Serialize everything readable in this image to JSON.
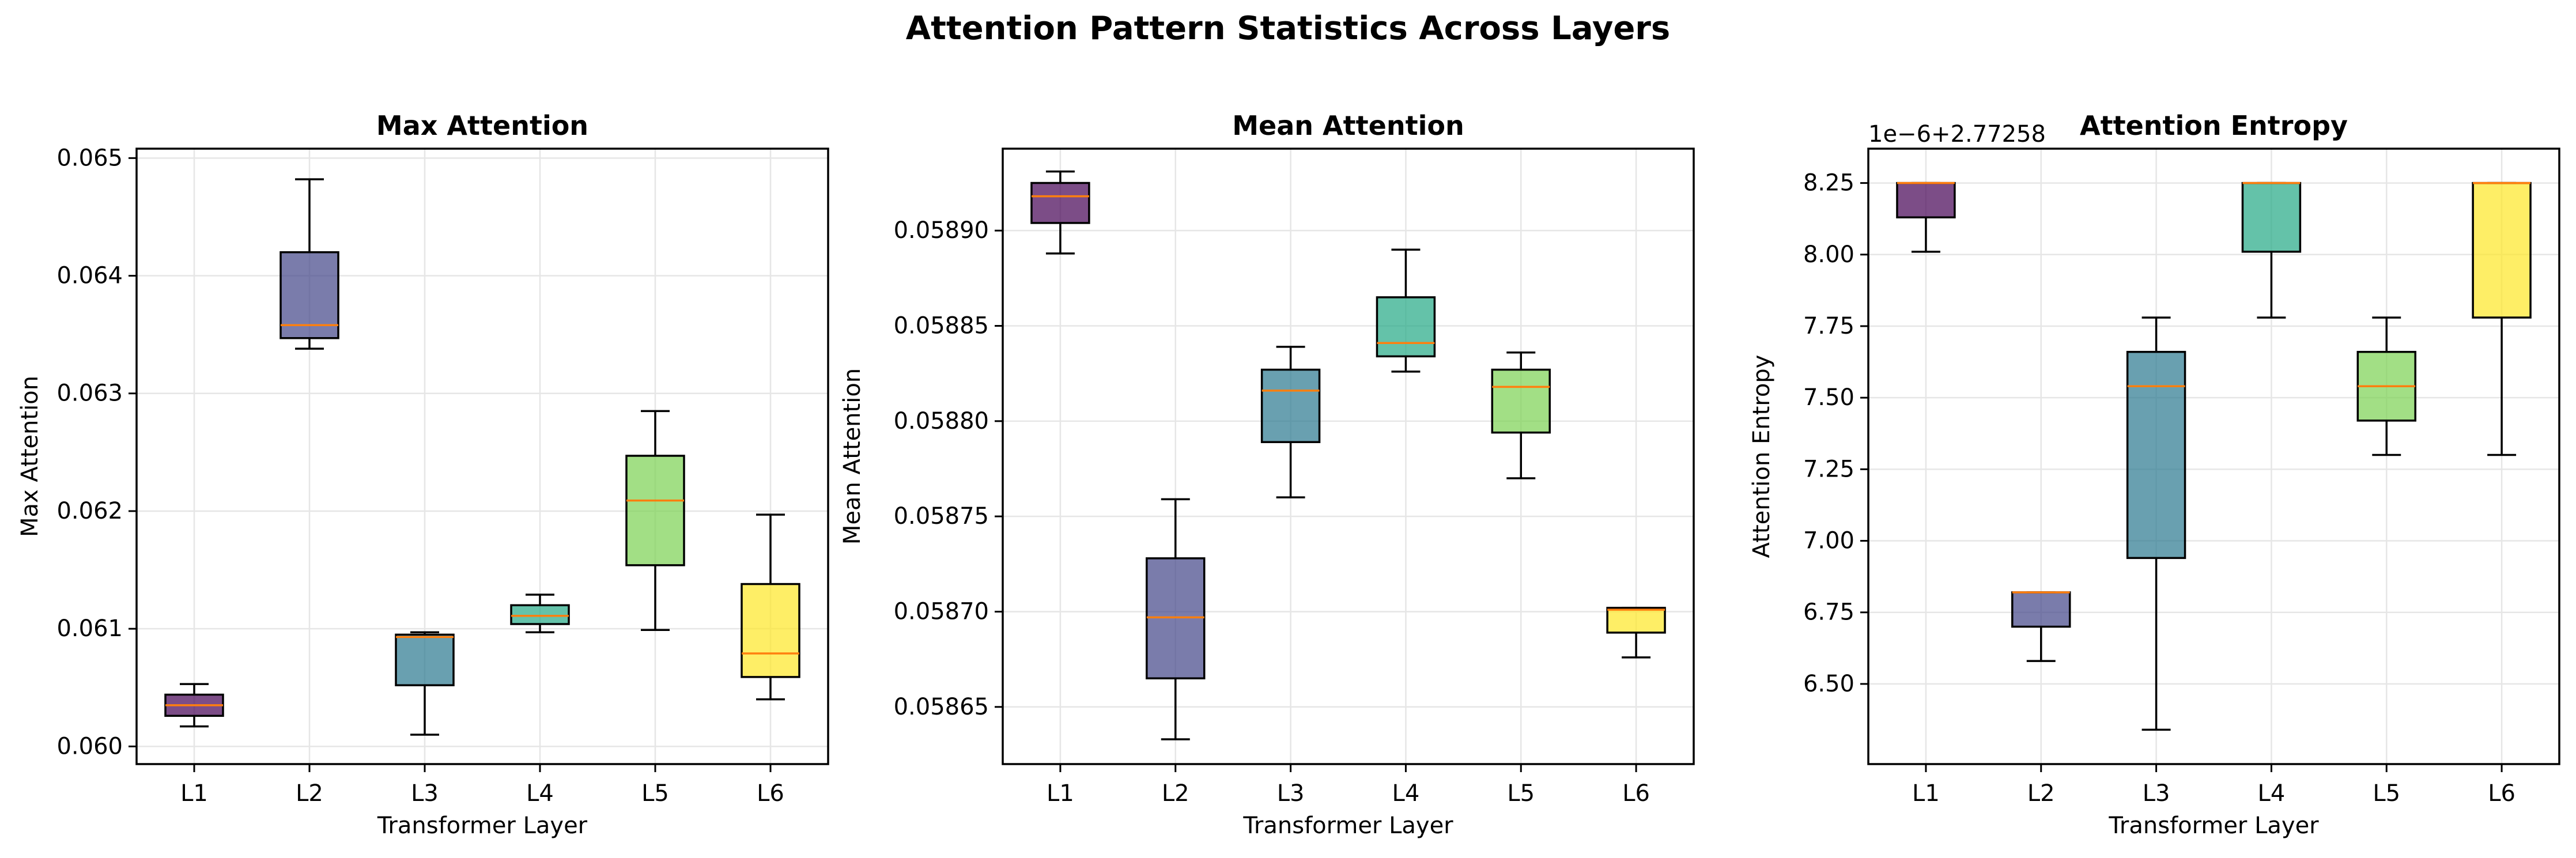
{
  "figure": {
    "suptitle": "Attention Pattern Statistics Across Layers"
  },
  "colors": {
    "L1": "#440154",
    "L2": "#414487",
    "L3": "#2a788e",
    "L4": "#22a884",
    "L5": "#7ad151",
    "L6": "#fde725",
    "median": "#ff7f0e",
    "grid": "#e6e6e6",
    "axis": "#000000"
  },
  "chart_data": [
    {
      "type": "box",
      "title": "Max Attention",
      "xlabel": "Transformer Layer",
      "ylabel": "Max Attention",
      "categories": [
        "L1",
        "L2",
        "L3",
        "L4",
        "L5",
        "L6"
      ],
      "ylim": [
        0.05985,
        0.06508
      ],
      "yticks": [
        0.06,
        0.061,
        0.062,
        0.063,
        0.064,
        0.065
      ],
      "ytick_labels": [
        "0.060",
        "0.061",
        "0.062",
        "0.063",
        "0.064",
        "0.065"
      ],
      "offset_text": "",
      "grid": true,
      "boxes": [
        {
          "label": "L1",
          "whislo": 0.06017,
          "q1": 0.06026,
          "med": 0.06035,
          "q3": 0.06044,
          "whishi": 0.06053
        },
        {
          "label": "L2",
          "whislo": 0.06338,
          "q1": 0.06347,
          "med": 0.06358,
          "q3": 0.0642,
          "whishi": 0.06482
        },
        {
          "label": "L3",
          "whislo": 0.0601,
          "q1": 0.06052,
          "med": 0.06093,
          "q3": 0.06095,
          "whishi": 0.06097
        },
        {
          "label": "L4",
          "whislo": 0.06097,
          "q1": 0.06104,
          "med": 0.06111,
          "q3": 0.0612,
          "whishi": 0.06129
        },
        {
          "label": "L5",
          "whislo": 0.06099,
          "q1": 0.06154,
          "med": 0.06209,
          "q3": 0.06247,
          "whishi": 0.06285
        },
        {
          "label": "L6",
          "whislo": 0.0604,
          "q1": 0.06059,
          "med": 0.06079,
          "q3": 0.06138,
          "whishi": 0.06197
        }
      ]
    },
    {
      "type": "box",
      "title": "Mean Attention",
      "xlabel": "Transformer Layer",
      "ylabel": "Mean Attention",
      "categories": [
        "L1",
        "L2",
        "L3",
        "L4",
        "L5",
        "L6"
      ],
      "ylim": [
        0.05862,
        0.058943
      ],
      "yticks": [
        0.05865,
        0.0587,
        0.05875,
        0.0588,
        0.05885,
        0.0589
      ],
      "ytick_labels": [
        "0.05865",
        "0.05870",
        "0.05875",
        "0.05880",
        "0.05885",
        "0.05890"
      ],
      "offset_text": "",
      "grid": true,
      "boxes": [
        {
          "label": "L1",
          "whislo": 0.058888,
          "q1": 0.058904,
          "med": 0.058918,
          "q3": 0.058925,
          "whishi": 0.058931
        },
        {
          "label": "L2",
          "whislo": 0.058633,
          "q1": 0.058665,
          "med": 0.058697,
          "q3": 0.058728,
          "whishi": 0.058759
        },
        {
          "label": "L3",
          "whislo": 0.05876,
          "q1": 0.058789,
          "med": 0.058816,
          "q3": 0.058827,
          "whishi": 0.058839
        },
        {
          "label": "L4",
          "whislo": 0.058826,
          "q1": 0.058834,
          "med": 0.058841,
          "q3": 0.058865,
          "whishi": 0.05889
        },
        {
          "label": "L5",
          "whislo": 0.05877,
          "q1": 0.058794,
          "med": 0.058818,
          "q3": 0.058827,
          "whishi": 0.058836
        },
        {
          "label": "L6",
          "whislo": 0.058676,
          "q1": 0.058689,
          "med": 0.058701,
          "q3": 0.058702,
          "whishi": 0.058702
        }
      ]
    },
    {
      "type": "box",
      "title": "Attention Entropy",
      "xlabel": "Transformer Layer",
      "ylabel": "Attention Entropy",
      "categories": [
        "L1",
        "L2",
        "L3",
        "L4",
        "L5",
        "L6"
      ],
      "ylim": [
        6.22,
        8.37
      ],
      "yticks": [
        6.5,
        6.75,
        7.0,
        7.25,
        7.5,
        7.75,
        8.0,
        8.25
      ],
      "ytick_labels": [
        "6.50",
        "6.75",
        "7.00",
        "7.25",
        "7.50",
        "7.75",
        "8.00",
        "8.25"
      ],
      "offset_text": "1e−6+2.77258",
      "grid": true,
      "boxes": [
        {
          "label": "L1",
          "whislo": 8.01,
          "q1": 8.13,
          "med": 8.25,
          "q3": 8.25,
          "whishi": 8.25
        },
        {
          "label": "L2",
          "whislo": 6.58,
          "q1": 6.7,
          "med": 6.82,
          "q3": 6.82,
          "whishi": 6.82
        },
        {
          "label": "L3",
          "whislo": 6.34,
          "q1": 6.94,
          "med": 7.54,
          "q3": 7.66,
          "whishi": 7.78
        },
        {
          "label": "L4",
          "whislo": 7.78,
          "q1": 8.01,
          "med": 8.25,
          "q3": 8.25,
          "whishi": 8.25
        },
        {
          "label": "L5",
          "whislo": 7.3,
          "q1": 7.42,
          "med": 7.54,
          "q3": 7.66,
          "whishi": 7.78
        },
        {
          "label": "L6",
          "whislo": 7.3,
          "q1": 7.78,
          "med": 8.25,
          "q3": 8.25,
          "whishi": 8.25
        }
      ]
    }
  ]
}
